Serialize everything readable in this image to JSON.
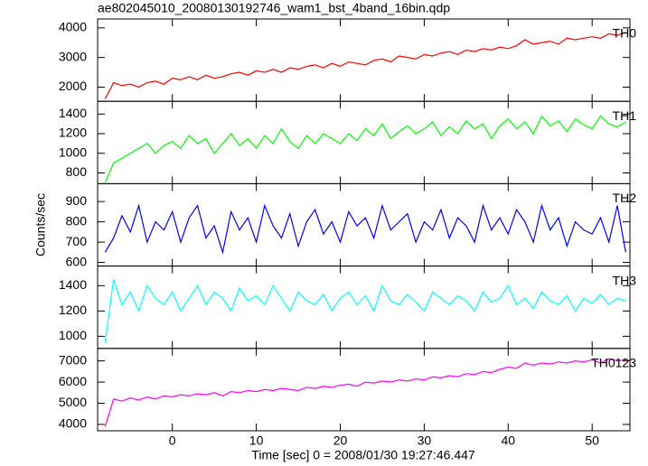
{
  "chart_data": [
    {
      "type": "line",
      "title": "ae802045010_20080130192746_wam1_bst_4band_16bin.qdp",
      "x": [
        -8,
        -7,
        -6,
        -5,
        -4,
        -3,
        -2,
        -1,
        0,
        1,
        2,
        3,
        4,
        5,
        6,
        7,
        8,
        9,
        10,
        11,
        12,
        13,
        14,
        15,
        16,
        17,
        18,
        19,
        20,
        21,
        22,
        23,
        24,
        25,
        26,
        27,
        28,
        29,
        30,
        31,
        32,
        33,
        34,
        35,
        36,
        37,
        38,
        39,
        40,
        41,
        42,
        43,
        44,
        45,
        46,
        47,
        48,
        49,
        50,
        51,
        52,
        53,
        54
      ],
      "series": [
        {
          "name": "TH0",
          "color": "#ff0000",
          "values": [
            1600,
            2150,
            2050,
            2100,
            2000,
            2150,
            2200,
            2100,
            2300,
            2250,
            2350,
            2250,
            2400,
            2300,
            2350,
            2450,
            2500,
            2400,
            2550,
            2500,
            2600,
            2500,
            2650,
            2600,
            2700,
            2750,
            2650,
            2800,
            2700,
            2850,
            2800,
            2750,
            2900,
            2950,
            2850,
            3050,
            3000,
            2950,
            3100,
            3050,
            3150,
            3200,
            3100,
            3250,
            3200,
            3300,
            3250,
            3350,
            3300,
            3400,
            3600,
            3450,
            3500,
            3550,
            3450,
            3650,
            3600,
            3650,
            3700,
            3650,
            3800,
            3750,
            3850
          ]
        }
      ],
      "xlim": [
        -8.9,
        54.5
      ],
      "ylim": [
        1520,
        4300
      ],
      "yticks": [
        2000,
        3000,
        4000
      ]
    },
    {
      "type": "line",
      "x": [
        -8,
        -7,
        -6,
        -5,
        -4,
        -3,
        -2,
        -1,
        0,
        1,
        2,
        3,
        4,
        5,
        6,
        7,
        8,
        9,
        10,
        11,
        12,
        13,
        14,
        15,
        16,
        17,
        18,
        19,
        20,
        21,
        22,
        23,
        24,
        25,
        26,
        27,
        28,
        29,
        30,
        31,
        32,
        33,
        34,
        35,
        36,
        37,
        38,
        39,
        40,
        41,
        42,
        43,
        44,
        45,
        46,
        47,
        48,
        49,
        50,
        51,
        52,
        53,
        54
      ],
      "series": [
        {
          "name": "TH1",
          "color": "#00ff00",
          "values": [
            700,
            900,
            950,
            1000,
            1050,
            1100,
            1000,
            1080,
            1120,
            1050,
            1180,
            1100,
            1150,
            1000,
            1100,
            1200,
            1080,
            1150,
            1050,
            1180,
            1100,
            1250,
            1120,
            1050,
            1180,
            1100,
            1200,
            1150,
            1100,
            1200,
            1130,
            1250,
            1180,
            1300,
            1150,
            1220,
            1280,
            1200,
            1250,
            1320,
            1180,
            1270,
            1200,
            1330,
            1250,
            1300,
            1150,
            1280,
            1350,
            1250,
            1320,
            1200,
            1380,
            1280,
            1330,
            1220,
            1350,
            1290,
            1250,
            1380,
            1300,
            1270,
            1320
          ]
        }
      ],
      "xlim": [
        -8.9,
        54.5
      ],
      "ylim": [
        690,
        1530
      ],
      "yticks": [
        800,
        1000,
        1200,
        1400
      ]
    },
    {
      "type": "line",
      "y_label": "Counts/sec",
      "x": [
        -8,
        -7,
        -6,
        -5,
        -4,
        -3,
        -2,
        -1,
        0,
        1,
        2,
        3,
        4,
        5,
        6,
        7,
        8,
        9,
        10,
        11,
        12,
        13,
        14,
        15,
        16,
        17,
        18,
        19,
        20,
        21,
        22,
        23,
        24,
        25,
        26,
        27,
        28,
        29,
        30,
        31,
        32,
        33,
        34,
        35,
        36,
        37,
        38,
        39,
        40,
        41,
        42,
        43,
        44,
        45,
        46,
        47,
        48,
        49,
        50,
        51,
        52,
        53,
        54
      ],
      "series": [
        {
          "name": "TH2",
          "color": "#0000ff",
          "values": [
            650,
            720,
            830,
            750,
            880,
            700,
            800,
            760,
            850,
            700,
            820,
            880,
            720,
            780,
            650,
            850,
            760,
            820,
            700,
            880,
            780,
            720,
            840,
            680,
            800,
            860,
            740,
            800,
            700,
            850,
            780,
            820,
            720,
            880,
            760,
            800,
            840,
            700,
            800,
            760,
            860,
            720,
            820,
            780,
            700,
            880,
            760,
            820,
            740,
            860,
            800,
            700,
            880,
            760,
            820,
            680,
            800,
            760,
            740,
            820,
            700,
            880,
            650
          ]
        }
      ],
      "xlim": [
        -8.9,
        54.5
      ],
      "ylim": [
        582,
        988
      ],
      "yticks": [
        600,
        700,
        800,
        900
      ]
    },
    {
      "type": "line",
      "x": [
        -8,
        -7,
        -6,
        -5,
        -4,
        -3,
        -2,
        -1,
        0,
        1,
        2,
        3,
        4,
        5,
        6,
        7,
        8,
        9,
        10,
        11,
        12,
        13,
        14,
        15,
        16,
        17,
        18,
        19,
        20,
        21,
        22,
        23,
        24,
        25,
        26,
        27,
        28,
        29,
        30,
        31,
        32,
        33,
        34,
        35,
        36,
        37,
        38,
        39,
        40,
        41,
        42,
        43,
        44,
        45,
        46,
        47,
        48,
        49,
        50,
        51,
        52,
        53,
        54
      ],
      "series": [
        {
          "name": "TH3",
          "color": "#00ffff",
          "values": [
            950,
            1450,
            1250,
            1350,
            1200,
            1400,
            1300,
            1250,
            1350,
            1200,
            1300,
            1400,
            1250,
            1350,
            1300,
            1200,
            1380,
            1280,
            1320,
            1250,
            1400,
            1300,
            1200,
            1350,
            1280,
            1250,
            1330,
            1200,
            1300,
            1350,
            1250,
            1320,
            1200,
            1400,
            1280,
            1250,
            1330,
            1270,
            1200,
            1350,
            1300,
            1250,
            1320,
            1280,
            1200,
            1350,
            1270,
            1300,
            1400,
            1250,
            1300,
            1220,
            1350,
            1280,
            1250,
            1320,
            1200,
            1300,
            1260,
            1330,
            1250,
            1300,
            1280
          ]
        }
      ],
      "xlim": [
        -8.9,
        54.5
      ],
      "ylim": [
        904,
        1555
      ],
      "yticks": [
        1000,
        1200,
        1400
      ]
    },
    {
      "type": "line",
      "x_label": "Time [sec] 0 = 2008/01/30 19:27:46.447",
      "x": [
        -8,
        -7,
        -6,
        -5,
        -4,
        -3,
        -2,
        -1,
        0,
        1,
        2,
        3,
        4,
        5,
        6,
        7,
        8,
        9,
        10,
        11,
        12,
        13,
        14,
        15,
        16,
        17,
        18,
        19,
        20,
        21,
        22,
        23,
        24,
        25,
        26,
        27,
        28,
        29,
        30,
        31,
        32,
        33,
        34,
        35,
        36,
        37,
        38,
        39,
        40,
        41,
        42,
        43,
        44,
        45,
        46,
        47,
        48,
        49,
        50,
        51,
        52,
        53,
        54
      ],
      "series": [
        {
          "name": "TH0123",
          "color": "#ff00ff",
          "values": [
            3900,
            5200,
            5100,
            5250,
            5150,
            5300,
            5200,
            5350,
            5300,
            5400,
            5350,
            5450,
            5400,
            5500,
            5350,
            5550,
            5500,
            5600,
            5550,
            5650,
            5600,
            5700,
            5650,
            5600,
            5750,
            5700,
            5800,
            5750,
            5850,
            5900,
            5800,
            6000,
            5950,
            6050,
            6000,
            6100,
            6050,
            6150,
            6100,
            6250,
            6200,
            6300,
            6250,
            6400,
            6350,
            6500,
            6450,
            6600,
            6700,
            6650,
            6900,
            6800,
            6900,
            6850,
            6950,
            6900,
            7000,
            6950,
            7050,
            6900,
            7100,
            7000,
            7050
          ]
        }
      ],
      "xlim": [
        -8.9,
        54.5
      ],
      "ylim": [
        3700,
        7590
      ],
      "yticks": [
        4000,
        5000,
        6000,
        7000
      ],
      "xticks": [
        0,
        10,
        20,
        30,
        40,
        50
      ]
    }
  ]
}
